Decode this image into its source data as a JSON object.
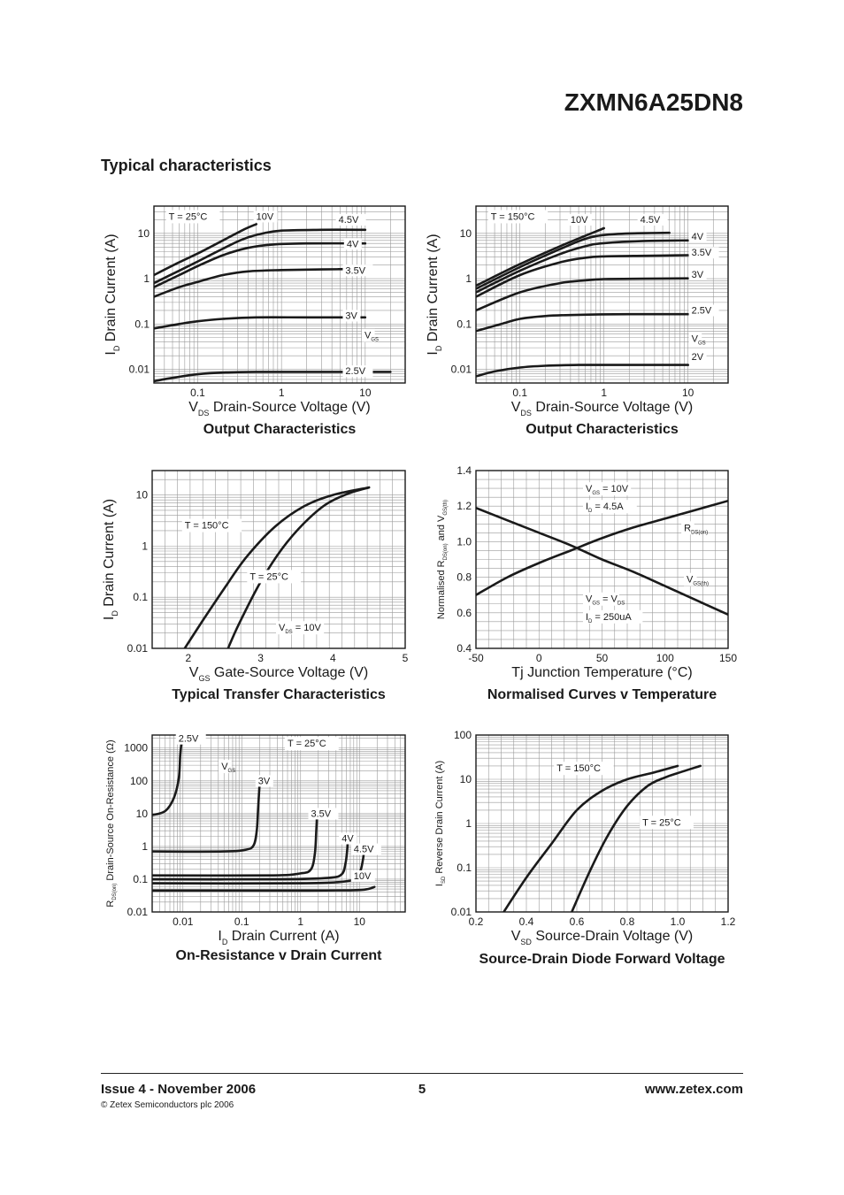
{
  "header": {
    "part_number": "ZXMN6A25DN8",
    "section_title": "Typical characteristics"
  },
  "footer": {
    "issue": "Issue 4 - November 2006",
    "page": "5",
    "url": "www.zetex.com",
    "copyright": "© Zetex Semiconductors plc 2006"
  },
  "chart_data": [
    {
      "id": "output25",
      "type": "line",
      "title": "Output Characteristics",
      "xlabel": "V<DS>  Drain-Source Voltage (V)",
      "ylabel": "I<D>  Drain Current (A)",
      "xscale": "log",
      "yscale": "log",
      "xlim": [
        0.03,
        30
      ],
      "ylim": [
        0.005,
        40
      ],
      "grid": true,
      "xticks": [
        0.1,
        1,
        10
      ],
      "xtick_labels": [
        "0.1",
        "1",
        "10"
      ],
      "yticks": [
        0.01,
        0.1,
        1,
        10
      ],
      "ytick_labels": [
        "0.01",
        "0.1",
        "1",
        "10"
      ],
      "annotations": [
        {
          "text": "T = 25°C",
          "x": 0.045,
          "y": 20
        },
        {
          "text": "V<GS>",
          "x": 9.8,
          "y": 0.048
        }
      ],
      "series": [
        {
          "name": "10V",
          "label_at": [
            0.5,
            20
          ],
          "x": [
            0.03,
            0.06,
            0.1,
            0.2,
            0.35,
            0.5
          ],
          "y": [
            1.2,
            2.3,
            3.6,
            7,
            12,
            16
          ]
        },
        {
          "name": "4.5V",
          "label_at": [
            4.8,
            17
          ],
          "x": [
            0.03,
            0.06,
            0.1,
            0.2,
            0.35,
            0.6,
            1,
            3,
            10
          ],
          "y": [
            0.8,
            1.5,
            2.4,
            4.6,
            7.5,
            10,
            11.5,
            12,
            12
          ]
        },
        {
          "name": "4V",
          "label_at": [
            6,
            5
          ],
          "x": [
            0.03,
            0.06,
            0.1,
            0.2,
            0.4,
            0.8,
            2,
            10
          ],
          "y": [
            0.65,
            1.2,
            1.9,
            3.3,
            4.8,
            5.7,
            6,
            6
          ]
        },
        {
          "name": "3.5V",
          "label_at": [
            5.8,
            1.3
          ],
          "x": [
            0.03,
            0.06,
            0.1,
            0.2,
            0.4,
            1,
            3,
            10
          ],
          "y": [
            0.4,
            0.65,
            0.85,
            1.2,
            1.45,
            1.55,
            1.6,
            1.65
          ]
        },
        {
          "name": "3V",
          "label_at": [
            5.8,
            0.13
          ],
          "x": [
            0.03,
            0.06,
            0.1,
            0.2,
            0.5,
            2,
            10
          ],
          "y": [
            0.08,
            0.1,
            0.115,
            0.13,
            0.14,
            0.14,
            0.14
          ]
        },
        {
          "name": "2.5V",
          "label_at": [
            5.8,
            0.0078
          ],
          "x": [
            0.03,
            0.05,
            0.1,
            0.2,
            0.5,
            2,
            20
          ],
          "y": [
            0.0055,
            0.0065,
            0.0078,
            0.0085,
            0.0088,
            0.0088,
            0.0088
          ]
        }
      ]
    },
    {
      "id": "output150",
      "type": "line",
      "title": "Output Characteristics",
      "xlabel": "V<DS>  Drain-Source Voltage (V)",
      "ylabel": "I<D>  Drain Current (A)",
      "xscale": "log",
      "yscale": "log",
      "xlim": [
        0.03,
        30
      ],
      "ylim": [
        0.005,
        40
      ],
      "grid": true,
      "xticks": [
        0.1,
        1,
        10
      ],
      "xtick_labels": [
        "0.1",
        "1",
        "10"
      ],
      "yticks": [
        0.01,
        0.1,
        1,
        10
      ],
      "ytick_labels": [
        "0.01",
        "0.1",
        "1",
        "10"
      ],
      "annotations": [
        {
          "text": "T = 150°C",
          "x": 0.045,
          "y": 20
        },
        {
          "text": "V<GS>",
          "x": 11,
          "y": 0.04
        }
      ],
      "series": [
        {
          "name": "10V",
          "label_at": [
            0.4,
            17
          ],
          "x": [
            0.03,
            0.1,
            0.3,
            1
          ],
          "y": [
            0.7,
            2.1,
            5.2,
            13
          ]
        },
        {
          "name": "4.5V",
          "label_at": [
            2.7,
            17
          ],
          "x": [
            0.03,
            0.1,
            0.3,
            0.6,
            1,
            2,
            6
          ],
          "y": [
            0.6,
            1.8,
            4.5,
            7.6,
            9.2,
            10,
            10.3
          ]
        },
        {
          "name": "4V",
          "label_at": [
            11,
            7.2
          ],
          "x": [
            0.03,
            0.1,
            0.3,
            0.6,
            1,
            3,
            10
          ],
          "y": [
            0.5,
            1.5,
            3.5,
            5.2,
            6.1,
            6.8,
            7
          ]
        },
        {
          "name": "3.5V",
          "label_at": [
            11,
            3.2
          ],
          "x": [
            0.03,
            0.1,
            0.3,
            0.6,
            1,
            3,
            10
          ],
          "y": [
            0.4,
            1.2,
            2.3,
            2.9,
            3.1,
            3.2,
            3.3
          ]
        },
        {
          "name": "3V",
          "label_at": [
            11,
            1.05
          ],
          "x": [
            0.03,
            0.1,
            0.3,
            0.6,
            1,
            3,
            10
          ],
          "y": [
            0.2,
            0.5,
            0.8,
            0.92,
            0.98,
            1.0,
            1.02
          ]
        },
        {
          "name": "2.5V",
          "label_at": [
            11,
            0.17
          ],
          "x": [
            0.03,
            0.06,
            0.1,
            0.2,
            0.5,
            2,
            10
          ],
          "y": [
            0.07,
            0.1,
            0.13,
            0.15,
            0.16,
            0.165,
            0.165
          ]
        },
        {
          "name": "2V",
          "label_at": [
            11,
            0.016
          ],
          "x": [
            0.03,
            0.05,
            0.1,
            0.2,
            0.5,
            2,
            10
          ],
          "y": [
            0.007,
            0.009,
            0.011,
            0.012,
            0.0125,
            0.0125,
            0.0125
          ]
        }
      ]
    },
    {
      "id": "transfer",
      "type": "line",
      "title": "Typical Transfer Characteristics",
      "xlabel": "V<GS>  Gate-Source Voltage (V)",
      "ylabel": "I<D>  Drain Current (A)",
      "xscale": "linear",
      "yscale": "log",
      "xlim": [
        1.5,
        5
      ],
      "ylim": [
        0.01,
        30
      ],
      "grid": true,
      "xticks": [
        2,
        3,
        4,
        5
      ],
      "xtick_labels": [
        "2",
        "3",
        "4",
        "5"
      ],
      "yticks": [
        0.01,
        0.1,
        1,
        10
      ],
      "ytick_labels": [
        "0.01",
        "0.1",
        "1",
        "10"
      ],
      "annotations": [
        {
          "text": "T = 150°C",
          "x": 1.95,
          "y": 2.2
        },
        {
          "text": "T = 25°C",
          "x": 2.85,
          "y": 0.22
        },
        {
          "text": "V<DS> = 10V",
          "x": 3.25,
          "y": 0.022
        }
      ],
      "series": [
        {
          "name": "T = 150°C",
          "x": [
            1.95,
            2.2,
            2.5,
            2.8,
            3.2,
            3.6,
            4.0,
            4.5
          ],
          "y": [
            0.01,
            0.035,
            0.15,
            0.6,
            2.4,
            6,
            10,
            14
          ]
        },
        {
          "name": "T = 25°C",
          "x": [
            2.55,
            2.7,
            3.0,
            3.3,
            3.6,
            3.9,
            4.2,
            4.5
          ],
          "y": [
            0.01,
            0.03,
            0.2,
            0.9,
            2.8,
            6.5,
            10.5,
            14
          ]
        }
      ]
    },
    {
      "id": "normalised",
      "type": "line",
      "title": "Normalised Curves v Temperature",
      "xlabel": "Tj  Junction Temperature (°C)",
      "ylabel": "Normalised R<DS(on)> and V<GS(th)>",
      "xscale": "linear",
      "yscale": "linear",
      "xlim": [
        -50,
        150
      ],
      "ylim": [
        0.4,
        1.4
      ],
      "grid": true,
      "xticks": [
        -50,
        0,
        50,
        100,
        150
      ],
      "xtick_labels": [
        "-50",
        "0",
        "50",
        "100",
        "150"
      ],
      "yticks": [
        0.4,
        0.6,
        0.8,
        1.0,
        1.2,
        1.4
      ],
      "ytick_labels": [
        "0.4",
        "0.6",
        "0.8",
        "1.0",
        "1.2",
        "1.4"
      ],
      "annotations": [
        {
          "text": "V<GS> = 10V",
          "x": 37,
          "y": 1.28
        },
        {
          "text": "I<D> = 4.5A",
          "x": 37,
          "y": 1.18
        },
        {
          "text": "R<DS(on)>",
          "x": 115,
          "y": 1.06
        },
        {
          "text": "V<GS(th)>",
          "x": 117,
          "y": 0.77
        },
        {
          "text": "V<GS> = V<DS>",
          "x": 37,
          "y": 0.66
        },
        {
          "text": "I<D> = 250uA",
          "x": 37,
          "y": 0.56
        }
      ],
      "series": [
        {
          "name": "R<DS(on)>",
          "x": [
            -50,
            -25,
            0,
            25,
            50,
            75,
            100,
            125,
            150
          ],
          "y": [
            0.7,
            0.8,
            0.88,
            0.95,
            1.02,
            1.08,
            1.13,
            1.18,
            1.23
          ]
        },
        {
          "name": "V<GS(th)>",
          "x": [
            -50,
            -25,
            0,
            25,
            50,
            75,
            100,
            125,
            150
          ],
          "y": [
            1.19,
            1.12,
            1.05,
            0.98,
            0.9,
            0.83,
            0.75,
            0.67,
            0.59
          ]
        }
      ]
    },
    {
      "id": "onres",
      "type": "line",
      "title": "On-Resistance v Drain Current",
      "xlabel": "I<D>  Drain Current (A)",
      "ylabel": "R<DS(on)>  Drain-Source On-Resistance (Ω)",
      "xscale": "log",
      "yscale": "log",
      "xlim": [
        0.003,
        60
      ],
      "ylim": [
        0.01,
        2500
      ],
      "grid": true,
      "xticks": [
        0.01,
        0.1,
        1,
        10
      ],
      "xtick_labels": [
        "0.01",
        "0.1",
        "1",
        "10"
      ],
      "yticks": [
        0.01,
        0.1,
        1,
        10,
        100,
        1000
      ],
      "ytick_labels": [
        "0.01",
        "0.1",
        "1",
        "10",
        "100",
        "1000"
      ],
      "annotations": [
        {
          "text": "T = 25°C",
          "x": 0.6,
          "y": 1100
        },
        {
          "text": "V<GS>",
          "x": 0.045,
          "y": 220
        }
      ],
      "series": [
        {
          "name": "2.5V",
          "label_at": [
            0.0084,
            1550
          ],
          "x": [
            0.003,
            0.005,
            0.007,
            0.0085,
            0.009,
            0.0095
          ],
          "y": [
            9,
            12,
            30,
            120,
            600,
            1600
          ]
        },
        {
          "name": "3V",
          "label_at": [
            0.19,
            80
          ],
          "x": [
            0.003,
            0.05,
            0.12,
            0.16,
            0.18,
            0.19,
            0.2
          ],
          "y": [
            0.7,
            0.7,
            0.8,
            1.1,
            3,
            15,
            70
          ]
        },
        {
          "name": "3.5V",
          "label_at": [
            1.5,
            8
          ],
          "x": [
            0.003,
            0.3,
            1,
            1.5,
            1.75,
            1.85,
            1.9
          ],
          "y": [
            0.13,
            0.13,
            0.15,
            0.2,
            0.6,
            3,
            9
          ]
        },
        {
          "name": "4V",
          "label_at": [
            5,
            1.4
          ],
          "x": [
            0.003,
            0.5,
            3,
            5,
            5.8,
            6.2,
            6.4
          ],
          "y": [
            0.1,
            0.1,
            0.11,
            0.14,
            0.3,
            0.8,
            1.6
          ]
        },
        {
          "name": "4.5V",
          "label_at": [
            8,
            0.66
          ],
          "x": [
            0.003,
            1,
            7,
            10,
            11.5,
            12
          ],
          "y": [
            0.075,
            0.075,
            0.09,
            0.15,
            0.4,
            0.9
          ]
        },
        {
          "name": "10V",
          "label_at": [
            8,
            0.1
          ],
          "x": [
            0.003,
            1,
            8,
            14,
            18
          ],
          "y": [
            0.045,
            0.045,
            0.046,
            0.05,
            0.058
          ]
        }
      ]
    },
    {
      "id": "diode",
      "type": "line",
      "title": "Source-Drain Diode Forward Voltage",
      "xlabel": "V<SD>  Source-Drain Voltage (V)",
      "ylabel": "I<SD>  Reverse Drain Current (A)",
      "xscale": "linear",
      "yscale": "log",
      "xlim": [
        0.2,
        1.2
      ],
      "ylim": [
        0.01,
        100
      ],
      "grid": true,
      "xticks": [
        0.2,
        0.4,
        0.6,
        0.8,
        1.0,
        1.2
      ],
      "xtick_labels": [
        "0.2",
        "0.4",
        "0.6",
        "0.8",
        "1.0",
        "1.2"
      ],
      "yticks": [
        0.01,
        0.1,
        1,
        10,
        100
      ],
      "ytick_labels": [
        "0.01",
        "0.1",
        "1",
        "10",
        "100"
      ],
      "annotations": [
        {
          "text": "T = 150°C",
          "x": 0.52,
          "y": 15
        },
        {
          "text": "T = 25°C",
          "x": 0.86,
          "y": 0.9
        }
      ],
      "series": [
        {
          "name": "T = 150°C",
          "x": [
            0.31,
            0.4,
            0.5,
            0.6,
            0.7,
            0.8,
            0.9,
            1.0
          ],
          "y": [
            0.01,
            0.06,
            0.35,
            2,
            5.5,
            10,
            14,
            20
          ]
        },
        {
          "name": "T = 25°C",
          "x": [
            0.58,
            0.65,
            0.72,
            0.8,
            0.88,
            0.95,
            1.02,
            1.09
          ],
          "y": [
            0.01,
            0.08,
            0.5,
            2.5,
            7,
            11,
            15,
            20
          ]
        }
      ]
    }
  ]
}
